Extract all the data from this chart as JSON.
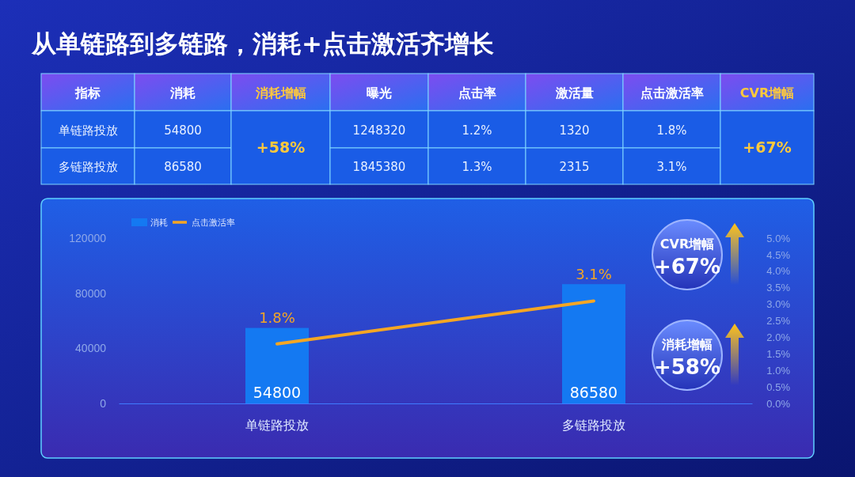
{
  "chart_data": [
    {
      "type": "other",
      "title": "从单链路到多链路，消耗+点击激活齐增长",
      "annotations": [
        "指标",
        "消耗",
        "消耗增幅",
        "曝光",
        "点击率",
        "激活量",
        "点击激活率",
        "CVR增幅",
        "单链路投放",
        "54800",
        "+58%",
        "1248320",
        "1.2%",
        "1320",
        "1.8%",
        "+67%",
        "多链路投放",
        "86580",
        "1845380",
        "1.3%",
        "2315",
        "3.1%"
      ]
    },
    {
      "type": "bar",
      "categories": [
        "单链路投放",
        "多链路投放"
      ],
      "series": [
        {
          "name": "消耗",
          "color": "#1479f2",
          "values": [
            54800,
            86580
          ],
          "value_labels": [
            "54800",
            "86580"
          ]
        },
        {
          "name": "点击激活率",
          "type": "line",
          "axis": "y2",
          "color": "#f5a623",
          "values": [
            1.8,
            3.1
          ],
          "value_labels": [
            "1.8%",
            "3.1%"
          ]
        }
      ],
      "ylim": [
        0,
        120000
      ],
      "yticks": [
        0,
        40000,
        80000,
        120000
      ],
      "y2lim": [
        0,
        5
      ],
      "y2ticks": [
        {
          "value": 0,
          "label": "0.0%"
        },
        {
          "value": 0.5,
          "label": "0.5%"
        },
        {
          "value": 1,
          "label": "1.0%"
        },
        {
          "value": 1.5,
          "label": "1.5%"
        },
        {
          "value": 2,
          "label": "2.0%"
        },
        {
          "value": 2.5,
          "label": "2.5%"
        },
        {
          "value": 3,
          "label": "3.0%"
        },
        {
          "value": 3.5,
          "label": "3.5%"
        },
        {
          "value": 4,
          "label": "4.0%"
        },
        {
          "value": 4.5,
          "label": "4.5%"
        },
        {
          "value": 5,
          "label": "5.0%"
        }
      ],
      "legend": "top left",
      "annotations": [
        "CVR增幅",
        "+67%",
        "消耗增幅",
        "+58%"
      ]
    }
  ]
}
